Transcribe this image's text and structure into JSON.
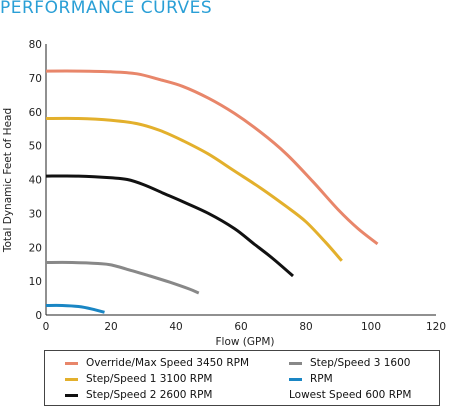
{
  "page": {
    "title": "PERFORMANCE CURVES"
  },
  "chart_data": {
    "type": "line",
    "xlabel": "Flow (GPM)",
    "ylabel": "Total Dynamic Feet of Head",
    "xlim": [
      0,
      120
    ],
    "ylim": [
      0,
      80
    ],
    "xticks": [
      0,
      20,
      40,
      60,
      80,
      100,
      120
    ],
    "yticks": [
      0,
      10,
      20,
      30,
      40,
      50,
      60,
      70,
      80
    ],
    "grid": false,
    "legend_position": "bottom",
    "series": [
      {
        "name": "Override/Max Speed 3450 RPM",
        "color": "#e8866a",
        "x": [
          0,
          10,
          20,
          28,
          35,
          42,
          50,
          58,
          66,
          74,
          82,
          90,
          96,
          102
        ],
        "y": [
          72,
          72,
          71.8,
          71.2,
          69.5,
          67.5,
          64,
          59.5,
          54,
          47.5,
          39.5,
          31,
          25.5,
          21
        ]
      },
      {
        "name": "Step/Speed 1 3100 RPM",
        "color": "#e3b02c",
        "x": [
          0,
          10,
          20,
          28,
          35,
          42,
          50,
          58,
          66,
          74,
          80,
          86,
          91
        ],
        "y": [
          58,
          58,
          57.5,
          56.5,
          54.5,
          51.5,
          47.5,
          42.5,
          37.5,
          32,
          27.5,
          21.5,
          16
        ]
      },
      {
        "name": "Step/Speed 2 2600 RPM",
        "color": "#111111",
        "x": [
          0,
          10,
          20,
          25,
          30,
          36,
          42,
          50,
          58,
          64,
          70,
          76
        ],
        "y": [
          41,
          41,
          40.5,
          40,
          38.5,
          36,
          33.5,
          30,
          25.5,
          21,
          16.5,
          11.5
        ]
      },
      {
        "name": "Step/Speed 3 1600",
        "color": "#888888",
        "x": [
          0,
          8,
          16,
          20,
          26,
          32,
          38,
          44,
          47
        ],
        "y": [
          15.5,
          15.5,
          15.2,
          14.8,
          13.2,
          11.5,
          9.7,
          7.7,
          6.5
        ]
      },
      {
        "name": "RPM",
        "color": "#1a86c4",
        "x": [
          0,
          5,
          10,
          14,
          18
        ],
        "y": [
          2.8,
          2.8,
          2.5,
          1.8,
          0.8
        ]
      },
      {
        "name": "Lowest Speed 600 RPM",
        "color": null,
        "x": [],
        "y": []
      }
    ]
  }
}
